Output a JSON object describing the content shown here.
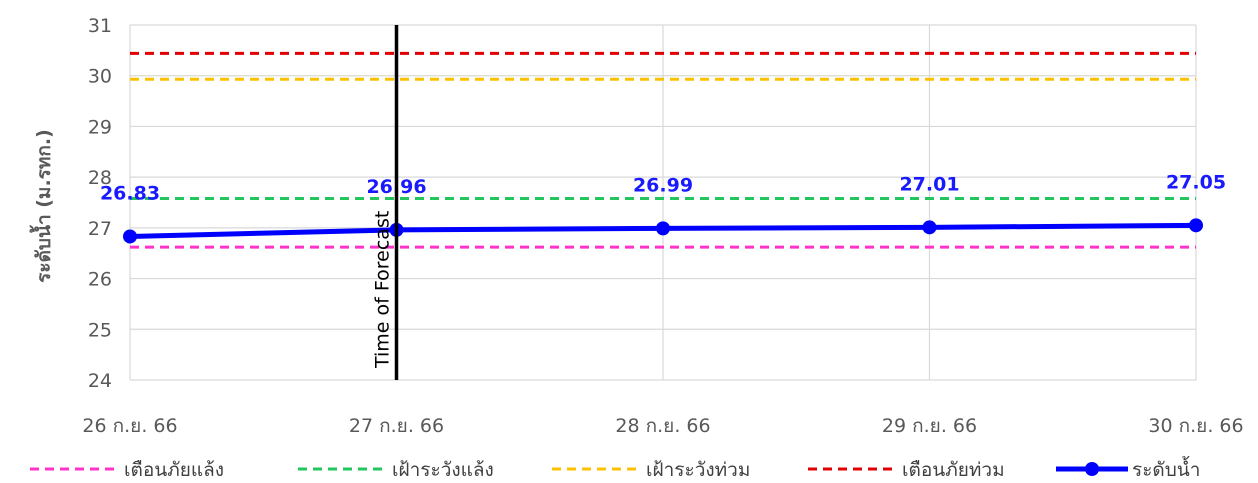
{
  "chart_data": {
    "type": "line",
    "categories": [
      "26 ก.ย. 66",
      "27 ก.ย. 66",
      "28 ก.ย. 66",
      "29 ก.ย. 66",
      "30 ก.ย. 66"
    ],
    "ylabel": "ระดับน้ำ (ม.รทก.)",
    "ylim": [
      24,
      31
    ],
    "yticks": [
      24,
      25,
      26,
      27,
      28,
      29,
      30,
      31
    ],
    "grid": true,
    "legend_position": "bottom",
    "series": [
      {
        "name": "เตือนภัยแล้ง",
        "style": "dashed",
        "color": "#ff33cc",
        "values": [
          26.62,
          26.62,
          26.62,
          26.62,
          26.62
        ]
      },
      {
        "name": "เฝ้าระวังแล้ง",
        "style": "dashed",
        "color": "#22c55e",
        "values": [
          27.58,
          27.58,
          27.58,
          27.58,
          27.58
        ]
      },
      {
        "name": "เฝ้าระวังท่วม",
        "style": "dashed",
        "color": "#ffc000",
        "values": [
          29.93,
          29.93,
          29.93,
          29.93,
          29.93
        ]
      },
      {
        "name": "เตือนภัยท่วม",
        "style": "dashed",
        "color": "#e00000",
        "values": [
          30.44,
          30.44,
          30.44,
          30.44,
          30.44
        ]
      },
      {
        "name": "ระดับน้ำ",
        "style": "solid-marker",
        "color": "#0000ff",
        "values": [
          26.83,
          26.96,
          26.99,
          27.01,
          27.05
        ],
        "data_labels": [
          "26.83",
          "26.96",
          "26.99",
          "27.01",
          "27.05"
        ]
      }
    ],
    "annotations": [
      {
        "text": "Time of Forecast",
        "category": "27 ก.ย. 66",
        "style": "vertical-line"
      }
    ]
  }
}
